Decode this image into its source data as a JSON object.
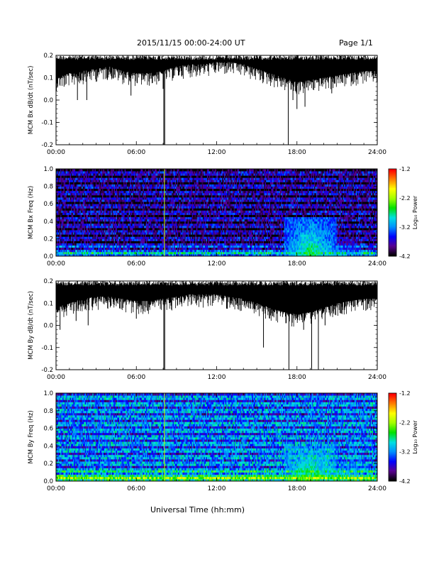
{
  "header": {
    "title": "2015/11/15  00:00-24:00 UT",
    "page": "Page 1/1"
  },
  "xaxis_label": "Universal Time (hh:mm)",
  "colors": {
    "trace": "#000000",
    "colormap": [
      "#000000",
      "#5a0090",
      "#0000ff",
      "#0090ff",
      "#00e0e0",
      "#00e000",
      "#a0ff00",
      "#ffff00",
      "#ff8000",
      "#ff0000"
    ]
  },
  "chart_data": [
    {
      "type": "line",
      "ylabel": "MCM Bx dB/dt (nT/sec)",
      "x_ticks": [
        "00:00",
        "06:00",
        "12:00",
        "18:00",
        "24:00"
      ],
      "xlim": [
        0,
        24
      ],
      "ylim": [
        -0.2,
        0.2
      ],
      "y_ticks": [
        "-0.2",
        "-0.1",
        "0.0",
        "0.1",
        "0.2"
      ],
      "envelope": {
        "x_hours": [
          0,
          1,
          2,
          3,
          4,
          5,
          6,
          7,
          8,
          9,
          10,
          11,
          12,
          13,
          14,
          15,
          16,
          17,
          18,
          19,
          20,
          21,
          22,
          23,
          24
        ],
        "upper": [
          0.2,
          0.2,
          0.2,
          0.2,
          0.2,
          0.2,
          0.2,
          0.2,
          0.2,
          0.2,
          0.2,
          0.2,
          0.2,
          0.2,
          0.2,
          0.2,
          0.2,
          0.2,
          0.2,
          0.2,
          0.2,
          0.2,
          0.2,
          0.2,
          0.2
        ],
        "lower": [
          0.1,
          0.12,
          0.13,
          0.14,
          0.15,
          0.13,
          0.12,
          0.12,
          0.13,
          0.15,
          0.16,
          0.16,
          0.17,
          0.17,
          0.16,
          0.14,
          0.12,
          0.1,
          0.08,
          0.09,
          0.1,
          0.11,
          0.12,
          0.13,
          0.13
        ]
      },
      "spikes": [
        {
          "t": 0.6,
          "y": 0.06
        },
        {
          "t": 1.6,
          "y": 0.0
        },
        {
          "t": 2.3,
          "y": 0.0
        },
        {
          "t": 5.6,
          "y": 0.02
        },
        {
          "t": 8.0,
          "y": 0.05
        },
        {
          "t": 8.05,
          "y": -0.2
        },
        {
          "t": 8.12,
          "y": -0.2
        },
        {
          "t": 17.35,
          "y": -0.2
        },
        {
          "t": 17.7,
          "y": 0.0
        },
        {
          "t": 18.0,
          "y": -0.04
        },
        {
          "t": 18.6,
          "y": -0.03
        },
        {
          "t": 20.6,
          "y": 0.03
        }
      ]
    },
    {
      "type": "heatmap",
      "ylabel": "MCM Bx Freq (Hz)",
      "x_ticks": [
        "00:00",
        "06:00",
        "12:00",
        "18:00",
        "24:00"
      ],
      "xlim": [
        0,
        24
      ],
      "ylim": [
        0.0,
        1.0
      ],
      "y_ticks": [
        "0.0",
        "0.2",
        "0.4",
        "0.6",
        "0.8",
        "1.0"
      ],
      "colorbar": {
        "label": "Log₁₀ Power",
        "range": [
          -4.2,
          -1.2
        ],
        "ticks": [
          "-4.2",
          "-3.2",
          "-2.2",
          "-1.2"
        ]
      },
      "base_level": -3.7,
      "activity": [
        {
          "t_center": 19.0,
          "f_max": 0.45,
          "level": -2.5
        },
        {
          "t_center": 21.0,
          "f_max": 0.2,
          "level": -3.0
        }
      ],
      "vertical_lines_hours": [
        8.1
      ]
    },
    {
      "type": "line",
      "ylabel": "MCM By dB/dt (nT/sec)",
      "x_ticks": [
        "00:00",
        "06:00",
        "12:00",
        "18:00",
        "24:00"
      ],
      "xlim": [
        0,
        24
      ],
      "ylim": [
        -0.2,
        0.2
      ],
      "y_ticks": [
        "-0.2",
        "-0.1",
        "0.0",
        "0.1",
        "0.2"
      ],
      "envelope": {
        "x_hours": [
          0,
          1,
          2,
          3,
          4,
          5,
          6,
          7,
          8,
          9,
          10,
          11,
          12,
          13,
          14,
          15,
          16,
          17,
          18,
          19,
          20,
          21,
          22,
          23,
          24
        ],
        "upper": [
          0.2,
          0.2,
          0.2,
          0.2,
          0.2,
          0.2,
          0.2,
          0.2,
          0.2,
          0.2,
          0.2,
          0.2,
          0.2,
          0.2,
          0.2,
          0.2,
          0.2,
          0.2,
          0.2,
          0.2,
          0.2,
          0.2,
          0.2,
          0.2,
          0.2
        ],
        "lower": [
          0.08,
          0.1,
          0.12,
          0.13,
          0.13,
          0.12,
          0.11,
          0.11,
          0.12,
          0.13,
          0.14,
          0.14,
          0.14,
          0.13,
          0.12,
          0.1,
          0.08,
          0.06,
          0.05,
          0.06,
          0.08,
          0.1,
          0.11,
          0.12,
          0.12
        ]
      },
      "spikes": [
        {
          "t": 0.3,
          "y": -0.02
        },
        {
          "t": 1.5,
          "y": 0.02
        },
        {
          "t": 2.4,
          "y": 0.0
        },
        {
          "t": 6.0,
          "y": 0.03
        },
        {
          "t": 8.05,
          "y": -0.2
        },
        {
          "t": 8.12,
          "y": -0.2
        },
        {
          "t": 15.5,
          "y": -0.1
        },
        {
          "t": 17.4,
          "y": -0.2
        },
        {
          "t": 18.5,
          "y": -0.02
        },
        {
          "t": 19.1,
          "y": -0.2
        },
        {
          "t": 19.6,
          "y": -0.2
        },
        {
          "t": 20.1,
          "y": 0.0
        }
      ]
    },
    {
      "type": "heatmap",
      "ylabel": "MCM By Freq (Hz)",
      "x_ticks": [
        "00:00",
        "06:00",
        "12:00",
        "18:00",
        "24:00"
      ],
      "xlim": [
        0,
        24
      ],
      "ylim": [
        0.0,
        1.0
      ],
      "y_ticks": [
        "0.0",
        "0.2",
        "0.4",
        "0.6",
        "0.8",
        "1.0"
      ],
      "colorbar": {
        "label": "Log₁₀ Power",
        "range": [
          -4.2,
          -1.2
        ],
        "ticks": [
          "-4.2",
          "-3.2",
          "-2.2",
          "-1.2"
        ]
      },
      "base_level": -3.1,
      "activity": [
        {
          "t_center": 19.0,
          "f_max": 0.4,
          "level": -2.4
        },
        {
          "t_center": 21.5,
          "f_max": 0.25,
          "level": -2.7
        }
      ],
      "vertical_lines_hours": [
        8.1
      ]
    }
  ]
}
